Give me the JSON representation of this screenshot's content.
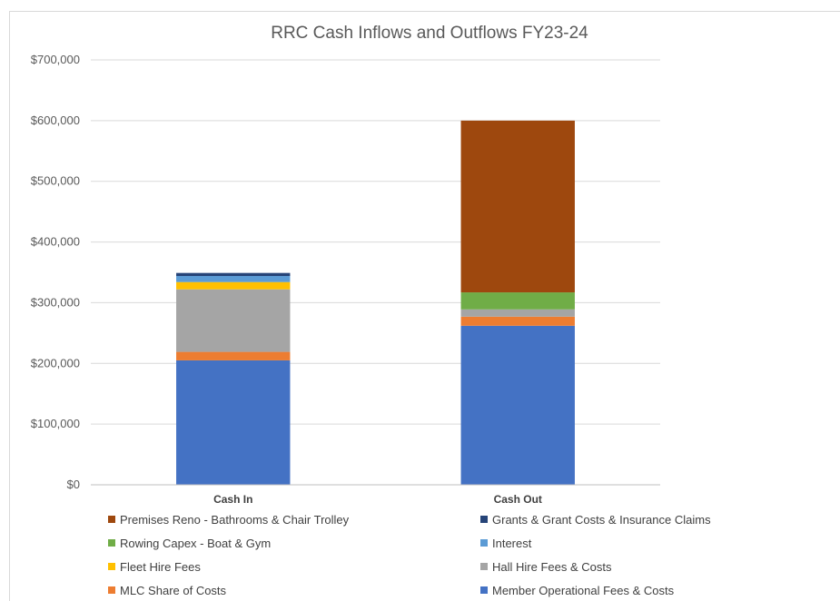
{
  "chart_data": {
    "type": "bar",
    "stacked": true,
    "title": "RRC Cash Inflows and Outflows FY23-24",
    "xlabel": "",
    "ylabel": "",
    "ylim": [
      0,
      700000
    ],
    "yticks": [
      0,
      100000,
      200000,
      300000,
      400000,
      500000,
      600000,
      700000
    ],
    "ytick_labels": [
      "$0",
      "$100,000",
      "$200,000",
      "$300,000",
      "$400,000",
      "$500,000",
      "$600,000",
      "$700,000"
    ],
    "categories": [
      "Cash In",
      "Cash Out"
    ],
    "grid": true,
    "legend_position": "bottom",
    "series": [
      {
        "name": "Member Operational Fees & Costs",
        "color": "#4472C4",
        "values": [
          205000,
          262000
        ]
      },
      {
        "name": "MLC Share of Costs",
        "color": "#ED7D31",
        "values": [
          14000,
          15000
        ]
      },
      {
        "name": "Hall Hire Fees & Costs",
        "color": "#A5A5A5",
        "values": [
          103000,
          12000
        ]
      },
      {
        "name": "Fleet Hire Fees",
        "color": "#FFC000",
        "values": [
          12000,
          0
        ]
      },
      {
        "name": "Interest",
        "color": "#5B9BD5",
        "values": [
          10000,
          0
        ]
      },
      {
        "name": "Rowing Capex - Boat & Gym",
        "color": "#70AD47",
        "values": [
          0,
          28000
        ]
      },
      {
        "name": "Grants & Grant Costs & Insurance Claims",
        "color": "#264478",
        "values": [
          5000,
          0
        ]
      },
      {
        "name": "Premises Reno - Bathrooms & Chair Trolley",
        "color": "#9E480E",
        "values": [
          0,
          283000
        ]
      }
    ],
    "legend_order": [
      7,
      6,
      5,
      4,
      3,
      2,
      1,
      0
    ]
  }
}
